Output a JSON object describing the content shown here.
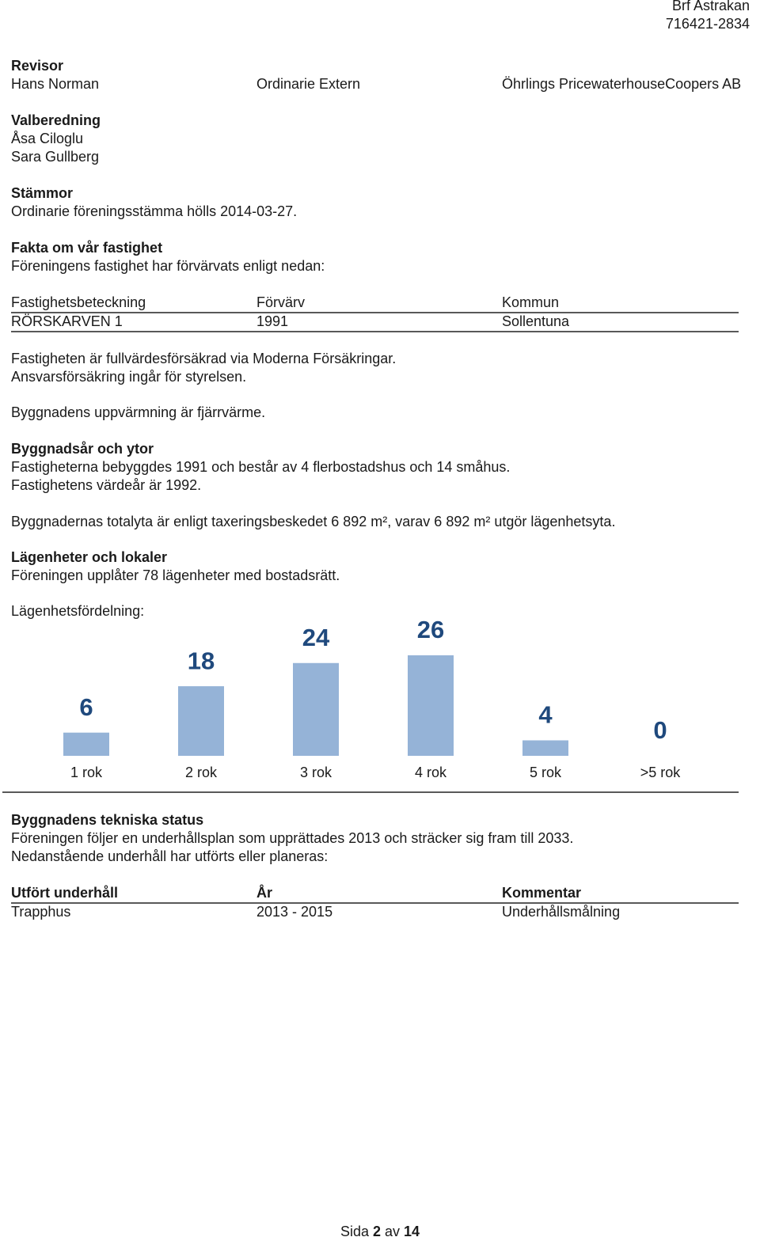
{
  "header": {
    "name": "Brf Astrakan",
    "orgnr": "716421-2834"
  },
  "revisor": {
    "heading": "Revisor",
    "rows": [
      [
        "Hans Norman",
        "Ordinarie Extern",
        "Öhrlings PricewaterhouseCoopers AB"
      ]
    ]
  },
  "valberedning": {
    "heading": "Valberedning",
    "lines": [
      "Åsa Ciloglu",
      "Sara Gullberg"
    ]
  },
  "stammor": {
    "heading": "Stämmor",
    "lines": [
      "Ordinarie föreningsstämma hölls 2014-03-27."
    ]
  },
  "fakta": {
    "heading": "Fakta om vår fastighet",
    "intro": "Föreningens fastighet har förvärvats enligt nedan:",
    "table": {
      "header": [
        "Fastighetsbeteckning",
        "Förvärv",
        "Kommun"
      ],
      "rows": [
        [
          "RÖRSKARVEN 1",
          "1991",
          "Sollentuna"
        ]
      ]
    },
    "insurance": [
      "Fastigheten är fullvärdesförsäkrad via Moderna Försäkringar.",
      "Ansvarsförsäkring ingår för styrelsen."
    ],
    "heating": "Byggnadens uppvärmning är fjärrvärme."
  },
  "byggnadsar": {
    "heading": "Byggnadsår och ytor",
    "lines": [
      "Fastigheterna bebyggdes 1991 och består av 4 flerbostadshus och 14 småhus.",
      "Fastighetens värdeår är 1992."
    ],
    "area": "Byggnadernas totalyta är enligt taxeringsbeskedet 6 892 m², varav 6 892 m² utgör lägenhetsyta."
  },
  "lagenheter": {
    "heading": "Lägenheter och lokaler",
    "lines": [
      "Föreningen upplåter 78 lägenheter med bostadsrätt."
    ],
    "distribution_label": "Lägenhetsfördelning:"
  },
  "chart_data": {
    "type": "bar",
    "categories": [
      "1 rok",
      "2 rok",
      "3 rok",
      "4 rok",
      "5 rok",
      ">5 rok"
    ],
    "values": [
      6,
      18,
      24,
      26,
      4,
      0
    ],
    "color": "#95b3d7",
    "label_color": "#1f497d"
  },
  "tekniska": {
    "heading": "Byggnadens tekniska status",
    "lines": [
      "Föreningen följer en underhållsplan som upprättades 2013 och sträcker sig fram till 2033.",
      "Nedanstående underhåll har utförts eller planeras:"
    ],
    "table": {
      "header": [
        "Utfört underhåll",
        "År",
        "Kommentar"
      ],
      "rows": [
        [
          "Trapphus",
          "2013 - 2015",
          "Underhållsmålning"
        ]
      ]
    }
  },
  "footer": {
    "prefix": "Sida",
    "page": "2",
    "sep": "av",
    "total": "14"
  }
}
